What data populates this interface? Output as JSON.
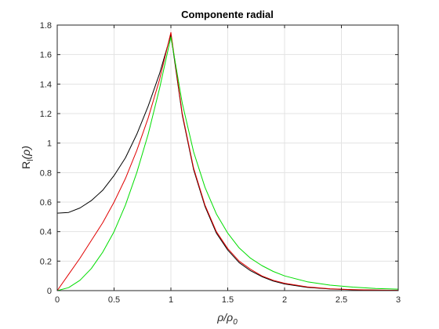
{
  "chart_data": {
    "type": "line",
    "title": "Componente radial",
    "xlabel": {
      "main": "ρ/ρ",
      "sub": "0"
    },
    "ylabel": {
      "main": "R",
      "sub": "l",
      "suffix": "(ρ)"
    },
    "xlim": [
      0,
      3
    ],
    "ylim": [
      0,
      1.8
    ],
    "xticks": [
      0,
      0.5,
      1,
      1.5,
      2,
      2.5,
      3
    ],
    "xtick_labels": [
      "0",
      "0.5",
      "1",
      "1.5",
      "2",
      "2.5",
      "3"
    ],
    "yticks": [
      0,
      0.2,
      0.4,
      0.6,
      0.8,
      1,
      1.2,
      1.4,
      1.6,
      1.8
    ],
    "ytick_labels": [
      "0",
      "0.2",
      "0.4",
      "0.6",
      "0.8",
      "1",
      "1.2",
      "1.4",
      "1.6",
      "1.8"
    ],
    "grid": true,
    "series": [
      {
        "color": "#000000",
        "x": [
          0,
          0.1,
          0.2,
          0.3,
          0.4,
          0.5,
          0.6,
          0.7,
          0.8,
          0.9,
          1.0,
          1.1,
          1.2,
          1.3,
          1.4,
          1.5,
          1.6,
          1.7,
          1.8,
          1.9,
          2.0,
          2.2,
          2.4,
          2.6,
          2.8,
          3.0
        ],
        "y": [
          0.525,
          0.53,
          0.56,
          0.61,
          0.68,
          0.78,
          0.9,
          1.06,
          1.25,
          1.47,
          1.735,
          1.19,
          0.82,
          0.57,
          0.39,
          0.275,
          0.19,
          0.135,
          0.095,
          0.065,
          0.045,
          0.022,
          0.011,
          0.006,
          0.003,
          0.002
        ]
      },
      {
        "color": "#e00000",
        "x": [
          0,
          0.1,
          0.2,
          0.3,
          0.4,
          0.5,
          0.6,
          0.7,
          0.8,
          0.9,
          1.0,
          1.1,
          1.2,
          1.3,
          1.4,
          1.5,
          1.6,
          1.7,
          1.8,
          1.9,
          2.0,
          2.2,
          2.4,
          2.6,
          2.8,
          3.0
        ],
        "y": [
          0.0,
          0.11,
          0.22,
          0.34,
          0.46,
          0.6,
          0.76,
          0.95,
          1.17,
          1.43,
          1.75,
          1.2,
          0.83,
          0.58,
          0.4,
          0.285,
          0.2,
          0.145,
          0.1,
          0.07,
          0.05,
          0.025,
          0.013,
          0.007,
          0.004,
          0.002
        ]
      },
      {
        "color": "#00dd00",
        "x": [
          0,
          0.1,
          0.2,
          0.3,
          0.4,
          0.5,
          0.6,
          0.7,
          0.8,
          0.9,
          1.0,
          1.1,
          1.2,
          1.3,
          1.4,
          1.5,
          1.6,
          1.7,
          1.8,
          1.9,
          2.0,
          2.2,
          2.4,
          2.6,
          2.8,
          3.0
        ],
        "y": [
          0.0,
          0.02,
          0.07,
          0.15,
          0.26,
          0.4,
          0.58,
          0.8,
          1.06,
          1.37,
          1.72,
          1.27,
          0.94,
          0.7,
          0.52,
          0.39,
          0.29,
          0.22,
          0.17,
          0.13,
          0.1,
          0.06,
          0.037,
          0.024,
          0.015,
          0.01
        ]
      }
    ]
  }
}
